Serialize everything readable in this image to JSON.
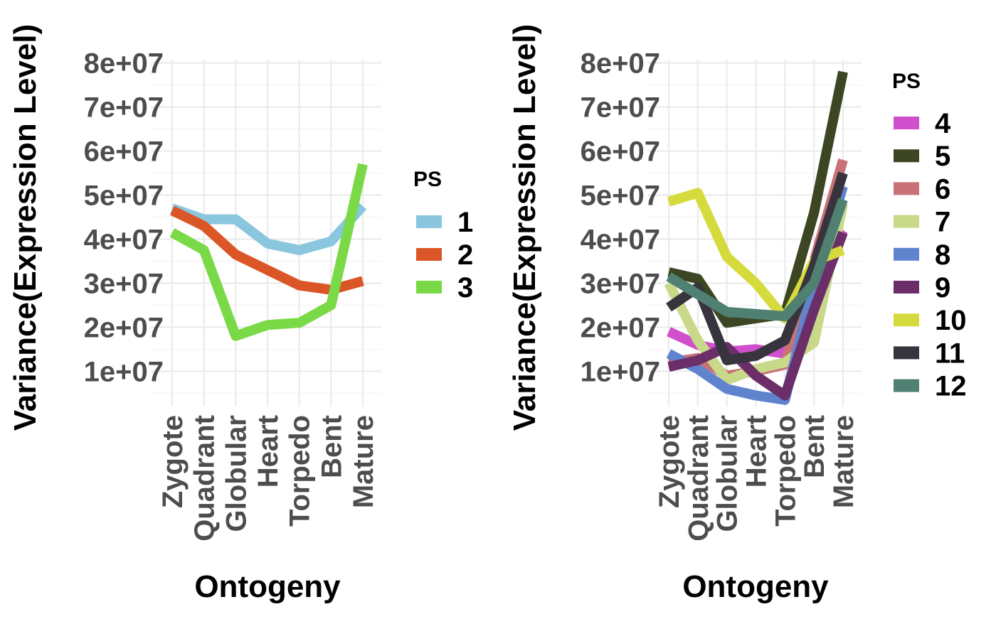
{
  "chart_data": [
    {
      "type": "line",
      "categories": [
        "Zygote",
        "Quadrant",
        "Globular",
        "Heart",
        "Torpedo",
        "Bent",
        "Mature"
      ],
      "xlabel": "Ontogeny",
      "ylabel": "Variance(Expression Level)",
      "ylim": [
        2000000,
        83000000
      ],
      "yticks": [
        10000000,
        20000000,
        30000000,
        40000000,
        50000000,
        60000000,
        70000000,
        80000000
      ],
      "ytick_labels": [
        "1e+07",
        "2e+07",
        "3e+07",
        "4e+07",
        "5e+07",
        "6e+07",
        "7e+07",
        "8e+07"
      ],
      "grid": true,
      "legend_title": "PS",
      "legend_position": "right",
      "series": [
        {
          "name": "1",
          "color": "#8ac6de",
          "values": [
            47000000,
            44500000,
            44500000,
            39000000,
            37500000,
            39500000,
            47500000
          ]
        },
        {
          "name": "2",
          "color": "#db5627",
          "values": [
            46500000,
            43000000,
            36500000,
            33000000,
            29500000,
            28500000,
            30500000
          ]
        },
        {
          "name": "3",
          "color": "#7ad947",
          "values": [
            41500000,
            37500000,
            18000000,
            20500000,
            21000000,
            25000000,
            57000000
          ]
        }
      ]
    },
    {
      "type": "line",
      "categories": [
        "Zygote",
        "Quadrant",
        "Globular",
        "Heart",
        "Torpedo",
        "Bent",
        "Mature"
      ],
      "xlabel": "Ontogeny",
      "ylabel": "Variance(Expression Level)",
      "ylim": [
        2000000,
        83000000
      ],
      "yticks": [
        10000000,
        20000000,
        30000000,
        40000000,
        50000000,
        60000000,
        70000000,
        80000000
      ],
      "ytick_labels": [
        "1e+07",
        "2e+07",
        "3e+07",
        "4e+07",
        "5e+07",
        "6e+07",
        "7e+07",
        "8e+07"
      ],
      "grid": true,
      "legend_title": "PS",
      "legend_position": "right",
      "series": [
        {
          "name": "4",
          "color": "#cf4fcc",
          "values": [
            19000000,
            16000000,
            14500000,
            15000000,
            14000000,
            30000000,
            42000000
          ]
        },
        {
          "name": "5",
          "color": "#3c4623",
          "values": [
            32500000,
            31000000,
            21000000,
            22000000,
            23000000,
            46000000,
            78000000
          ]
        },
        {
          "name": "6",
          "color": "#c87278",
          "values": [
            12000000,
            13000000,
            9000000,
            10000000,
            11500000,
            35000000,
            58000000
          ]
        },
        {
          "name": "7",
          "color": "#c9d98a",
          "values": [
            30000000,
            17000000,
            8000000,
            10500000,
            12000000,
            16500000,
            48000000
          ]
        },
        {
          "name": "8",
          "color": "#5f83cd",
          "values": [
            14000000,
            10500000,
            6000000,
            4500000,
            3500000,
            30000000,
            52000000
          ]
        },
        {
          "name": "9",
          "color": "#6b2e69",
          "values": [
            11000000,
            12500000,
            15500000,
            9000000,
            4500000,
            24000000,
            41500000
          ]
        },
        {
          "name": "10",
          "color": "#d6db3d",
          "values": [
            48500000,
            50500000,
            36000000,
            30000000,
            22000000,
            35000000,
            37500000
          ]
        },
        {
          "name": "11",
          "color": "#37343d",
          "values": [
            24500000,
            29000000,
            12500000,
            13500000,
            17000000,
            34000000,
            55000000
          ]
        },
        {
          "name": "12",
          "color": "#4f8072",
          "values": [
            31500000,
            27500000,
            23500000,
            23000000,
            22500000,
            30000000,
            49000000
          ]
        }
      ]
    }
  ]
}
